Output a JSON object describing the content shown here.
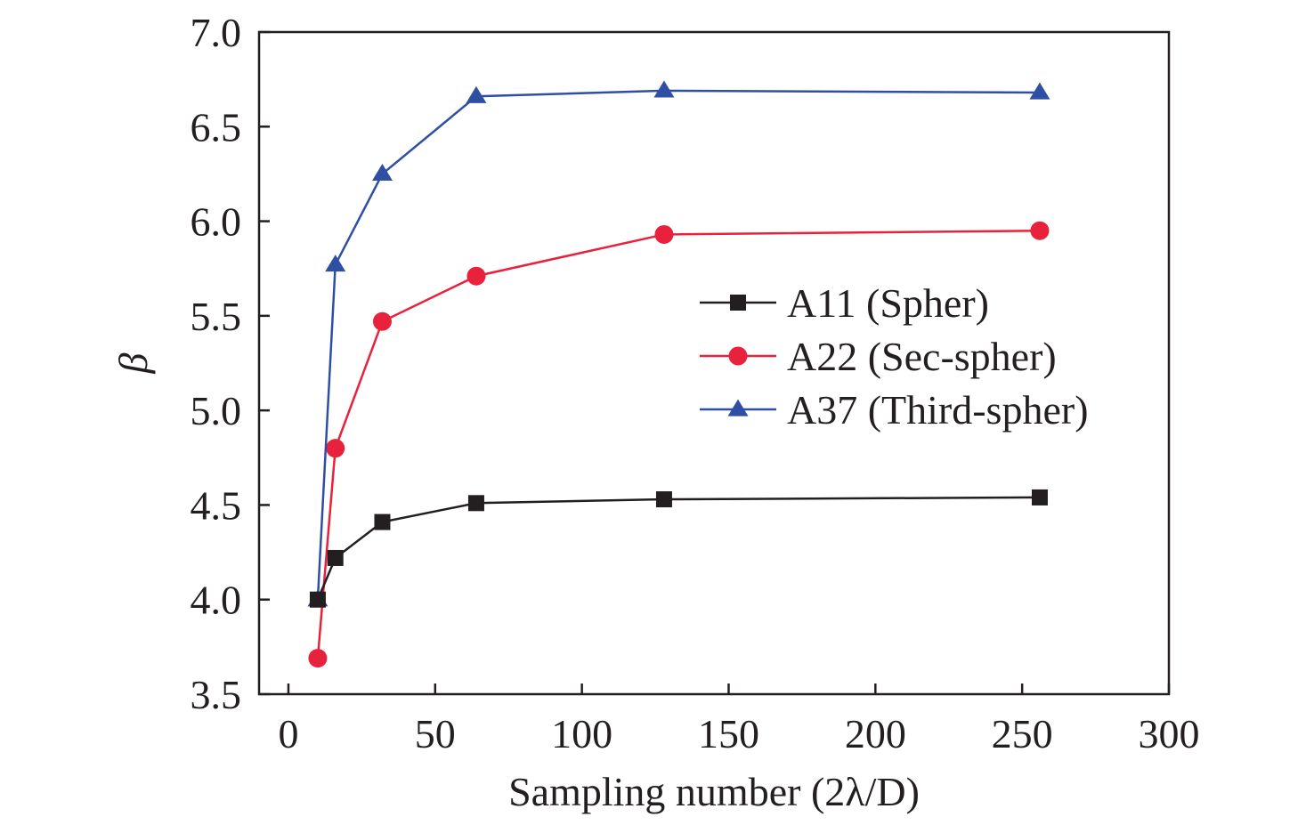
{
  "chart_data": {
    "type": "line",
    "xlabel": "Sampling number (2λ/D)",
    "ylabel": "β",
    "xlim": [
      -10,
      300
    ],
    "ylim": [
      3.5,
      7.0
    ],
    "xticks": [
      0,
      50,
      100,
      150,
      200,
      250,
      300
    ],
    "yticks": [
      3.5,
      4.0,
      4.5,
      5.0,
      5.5,
      6.0,
      6.5,
      7.0
    ],
    "xtick_labels": [
      "0",
      "50",
      "100",
      "150",
      "200",
      "250",
      "300"
    ],
    "ytick_labels": [
      "3.5",
      "4.0",
      "4.5",
      "5.0",
      "5.5",
      "6.0",
      "6.5",
      "7.0"
    ],
    "grid": false,
    "legend_position": "right-center",
    "series": [
      {
        "name": "A11 (Spher)",
        "marker": "square",
        "color": "#231f20",
        "x": [
          10,
          16,
          32,
          64,
          128,
          256
        ],
        "y": [
          4.0,
          4.22,
          4.41,
          4.51,
          4.53,
          4.54
        ]
      },
      {
        "name": "A22 (Sec-spher)",
        "marker": "circle",
        "color": "#e8213c",
        "x": [
          10,
          16,
          32,
          64,
          128,
          256
        ],
        "y": [
          3.69,
          4.8,
          5.47,
          5.71,
          5.93,
          5.95
        ]
      },
      {
        "name": "A37 (Third-spher)",
        "marker": "triangle",
        "color": "#2e4fa3",
        "x": [
          10,
          16,
          32,
          64,
          128,
          256
        ],
        "y": [
          4.0,
          5.77,
          6.25,
          6.66,
          6.69,
          6.68
        ]
      }
    ]
  }
}
